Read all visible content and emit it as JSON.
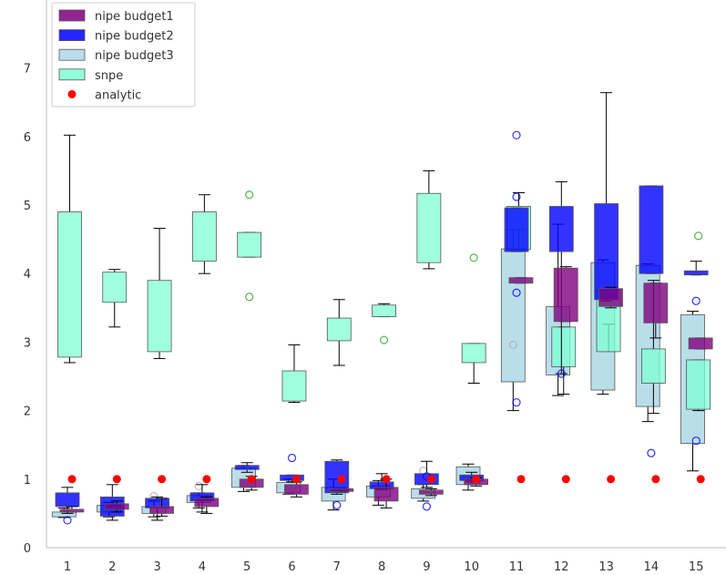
{
  "chart_data": {
    "type": "boxplot",
    "title": "",
    "xlabel": "",
    "ylabel": "",
    "ylim": [
      0,
      8
    ],
    "grid": false,
    "legend_position": "top-left",
    "categories": [
      "1",
      "2",
      "3",
      "4",
      "5",
      "6",
      "7",
      "8",
      "9",
      "10",
      "11",
      "12",
      "13",
      "14",
      "15"
    ],
    "yticks": [
      "0",
      "1",
      "2",
      "3",
      "4",
      "5",
      "6",
      "7"
    ],
    "legend": [
      {
        "label": "nipe budget1",
        "color": "#800080",
        "marker": "box"
      },
      {
        "label": "nipe budget2",
        "color": "#0000ff",
        "marker": "box"
      },
      {
        "label": "nipe budget3",
        "color": "#add8e6",
        "marker": "box"
      },
      {
        "label": "snpe",
        "color": "#7fffd4",
        "marker": "box"
      },
      {
        "label": "analytic",
        "color": "#ff0000",
        "marker": "dot"
      }
    ],
    "series": [
      {
        "name": "nipe budget3",
        "color": "#add8e6",
        "flier_color": "#aaaaaa",
        "offset": -0.15,
        "boxes": [
          {
            "x": 1,
            "wlo": 0.44,
            "q1": 0.45,
            "q3": 0.52,
            "whi": 0.58,
            "fliers": []
          },
          {
            "x": 2,
            "wlo": 0.45,
            "q1": 0.52,
            "q3": 0.62,
            "whi": 0.66,
            "fliers": []
          },
          {
            "x": 3,
            "wlo": 0.45,
            "q1": 0.5,
            "q3": 0.6,
            "whi": 0.68,
            "fliers": [
              0.75
            ]
          },
          {
            "x": 4,
            "wlo": 0.58,
            "q1": 0.66,
            "q3": 0.76,
            "whi": 0.8,
            "fliers": [
              0.9
            ]
          },
          {
            "x": 5,
            "wlo": 0.82,
            "q1": 0.88,
            "q3": 1.16,
            "whi": 1.2,
            "fliers": []
          },
          {
            "x": 6,
            "wlo": 0.78,
            "q1": 0.8,
            "q3": 0.95,
            "whi": 1.0,
            "fliers": []
          },
          {
            "x": 7,
            "wlo": 0.55,
            "q1": 0.68,
            "q3": 0.88,
            "whi": 1.0,
            "fliers": []
          },
          {
            "x": 8,
            "wlo": 0.62,
            "q1": 0.74,
            "q3": 0.9,
            "whi": 0.98,
            "fliers": []
          },
          {
            "x": 9,
            "wlo": 0.68,
            "q1": 0.72,
            "q3": 0.86,
            "whi": 0.92,
            "fliers": [
              1.12
            ]
          },
          {
            "x": 10,
            "wlo": 0.84,
            "q1": 0.92,
            "q3": 1.18,
            "whi": 1.22,
            "fliers": []
          },
          {
            "x": 11,
            "wlo": 2.0,
            "q1": 2.42,
            "q3": 4.36,
            "whi": 4.64,
            "fliers": [
              2.96
            ]
          },
          {
            "x": 12,
            "wlo": 2.22,
            "q1": 2.52,
            "q3": 3.52,
            "whi": 4.72,
            "fliers": []
          },
          {
            "x": 13,
            "wlo": 2.24,
            "q1": 2.3,
            "q3": 4.16,
            "whi": 4.2,
            "fliers": []
          },
          {
            "x": 14,
            "wlo": 1.84,
            "q1": 2.06,
            "q3": 4.12,
            "whi": 4.14,
            "fliers": []
          },
          {
            "x": 15,
            "wlo": 1.12,
            "q1": 1.52,
            "q3": 3.4,
            "whi": 3.45,
            "fliers": []
          }
        ]
      },
      {
        "name": "snpe",
        "color": "#7fffd4",
        "flier_color": "#2ca02c",
        "offset": 0.1,
        "boxes": [
          {
            "x": 1,
            "wlo": 2.7,
            "q1": 2.78,
            "q3": 4.9,
            "whi": 6.02,
            "fliers": []
          },
          {
            "x": 2,
            "wlo": 3.22,
            "q1": 3.58,
            "q3": 4.02,
            "whi": 4.06,
            "fliers": []
          },
          {
            "x": 3,
            "wlo": 2.76,
            "q1": 2.86,
            "q3": 3.9,
            "whi": 4.66,
            "fliers": []
          },
          {
            "x": 4,
            "wlo": 4.0,
            "q1": 4.18,
            "q3": 4.9,
            "whi": 5.15,
            "fliers": []
          },
          {
            "x": 5,
            "wlo": 4.24,
            "q1": 4.24,
            "q3": 4.6,
            "whi": 4.6,
            "fliers": [
              5.15,
              3.66
            ]
          },
          {
            "x": 6,
            "wlo": 2.12,
            "q1": 2.14,
            "q3": 2.58,
            "whi": 2.96,
            "fliers": []
          },
          {
            "x": 7,
            "wlo": 2.66,
            "q1": 3.02,
            "q3": 3.35,
            "whi": 3.62,
            "fliers": []
          },
          {
            "x": 8,
            "wlo": 3.37,
            "q1": 3.37,
            "q3": 3.54,
            "whi": 3.56,
            "fliers": [
              3.03
            ]
          },
          {
            "x": 9,
            "wlo": 4.07,
            "q1": 4.16,
            "q3": 5.17,
            "whi": 5.5,
            "fliers": []
          },
          {
            "x": 10,
            "wlo": 2.4,
            "q1": 2.7,
            "q3": 2.98,
            "whi": 2.98,
            "fliers": [
              4.23
            ]
          },
          {
            "x": 11,
            "wlo": 4.64,
            "q1": 4.35,
            "q3": 4.98,
            "whi": 5.18,
            "fliers": []
          },
          {
            "x": 12,
            "wlo": 2.24,
            "q1": 2.64,
            "q3": 3.22,
            "whi": 3.22,
            "fliers": []
          },
          {
            "x": 13,
            "wlo": 3.26,
            "q1": 2.86,
            "q3": 3.76,
            "whi": 3.76,
            "fliers": []
          },
          {
            "x": 14,
            "wlo": 1.96,
            "q1": 2.4,
            "q3": 2.9,
            "whi": 3.9,
            "fliers": []
          },
          {
            "x": 15,
            "wlo": 2.0,
            "q1": 2.02,
            "q3": 2.74,
            "whi": 2.74,
            "fliers": [
              4.55
            ]
          }
        ]
      },
      {
        "name": "nipe budget2",
        "color": "#0000ff",
        "flier_color": "#0000ff",
        "offset": 0.0,
        "boxes": [
          {
            "x": 1,
            "wlo": 0.5,
            "q1": 0.6,
            "q3": 0.8,
            "whi": 0.88,
            "fliers": [
              0.4
            ]
          },
          {
            "x": 2,
            "wlo": 0.4,
            "q1": 0.46,
            "q3": 0.74,
            "whi": 0.92,
            "fliers": []
          },
          {
            "x": 3,
            "wlo": 0.4,
            "q1": 0.58,
            "q3": 0.72,
            "whi": 0.74,
            "fliers": []
          },
          {
            "x": 4,
            "wlo": 0.52,
            "q1": 0.68,
            "q3": 0.8,
            "whi": 0.92,
            "fliers": []
          },
          {
            "x": 5,
            "wlo": 1.1,
            "q1": 1.14,
            "q3": 1.2,
            "whi": 1.24,
            "fliers": []
          },
          {
            "x": 6,
            "wlo": 0.96,
            "q1": 0.98,
            "q3": 1.06,
            "whi": 1.06,
            "fliers": [
              1.31
            ]
          },
          {
            "x": 7,
            "wlo": 0.78,
            "q1": 0.8,
            "q3": 1.26,
            "whi": 1.28,
            "fliers": [
              0.62
            ]
          },
          {
            "x": 8,
            "wlo": 0.85,
            "q1": 0.86,
            "q3": 0.96,
            "whi": 1.08,
            "fliers": []
          },
          {
            "x": 9,
            "wlo": 0.88,
            "q1": 0.92,
            "q3": 1.08,
            "whi": 1.26,
            "fliers": [
              0.6,
              1.04
            ]
          },
          {
            "x": 10,
            "wlo": 0.96,
            "q1": 0.98,
            "q3": 1.06,
            "whi": 1.1,
            "fliers": []
          },
          {
            "x": 11,
            "wlo": 4.32,
            "q1": 4.32,
            "q3": 4.96,
            "whi": 4.96,
            "fliers": [
              6.02,
              5.12,
              3.72,
              2.12
            ]
          },
          {
            "x": 12,
            "wlo": 2.54,
            "q1": 4.32,
            "q3": 4.98,
            "whi": 5.34,
            "fliers": [
              2.54
            ]
          },
          {
            "x": 13,
            "wlo": 3.6,
            "q1": 3.62,
            "q3": 5.02,
            "whi": 6.64,
            "fliers": []
          },
          {
            "x": 14,
            "wlo": 4.0,
            "q1": 4.0,
            "q3": 5.28,
            "whi": 5.28,
            "fliers": [
              1.38
            ]
          },
          {
            "x": 15,
            "wlo": 3.98,
            "q1": 3.98,
            "q3": 4.04,
            "whi": 4.18,
            "fliers": [
              3.6,
              1.56
            ]
          }
        ]
      },
      {
        "name": "nipe budget1",
        "color": "#800080",
        "flier_color": "#800080",
        "offset": 0.2,
        "boxes": [
          {
            "x": 1,
            "wlo": 0.52,
            "q1": 0.52,
            "q3": 0.56,
            "whi": 0.6,
            "fliers": []
          },
          {
            "x": 2,
            "wlo": 0.52,
            "q1": 0.56,
            "q3": 0.64,
            "whi": 0.68,
            "fliers": []
          },
          {
            "x": 3,
            "wlo": 0.46,
            "q1": 0.5,
            "q3": 0.6,
            "whi": 0.72,
            "fliers": []
          },
          {
            "x": 4,
            "wlo": 0.5,
            "q1": 0.6,
            "q3": 0.72,
            "whi": 0.74,
            "fliers": []
          },
          {
            "x": 5,
            "wlo": 0.84,
            "q1": 0.88,
            "q3": 1.0,
            "whi": 1.04,
            "fliers": []
          },
          {
            "x": 6,
            "wlo": 0.74,
            "q1": 0.78,
            "q3": 0.92,
            "whi": 0.96,
            "fliers": []
          },
          {
            "x": 7,
            "wlo": 0.82,
            "q1": 0.82,
            "q3": 0.86,
            "whi": 0.86,
            "fliers": []
          },
          {
            "x": 8,
            "wlo": 0.58,
            "q1": 0.68,
            "q3": 0.88,
            "whi": 1.0,
            "fliers": []
          },
          {
            "x": 9,
            "wlo": 0.76,
            "q1": 0.78,
            "q3": 0.84,
            "whi": 0.86,
            "fliers": []
          },
          {
            "x": 10,
            "wlo": 0.9,
            "q1": 0.92,
            "q3": 1.0,
            "whi": 1.02,
            "fliers": []
          },
          {
            "x": 11,
            "wlo": 3.86,
            "q1": 3.86,
            "q3": 3.94,
            "whi": 3.94,
            "fliers": []
          },
          {
            "x": 12,
            "wlo": 3.3,
            "q1": 3.3,
            "q3": 4.08,
            "whi": 4.1,
            "fliers": []
          },
          {
            "x": 13,
            "wlo": 3.5,
            "q1": 3.52,
            "q3": 3.78,
            "whi": 3.8,
            "fliers": []
          },
          {
            "x": 14,
            "wlo": 3.06,
            "q1": 3.28,
            "q3": 3.86,
            "whi": 3.86,
            "fliers": []
          },
          {
            "x": 15,
            "wlo": 2.9,
            "q1": 2.9,
            "q3": 3.06,
            "whi": 3.06,
            "fliers": []
          }
        ]
      }
    ],
    "analytic": {
      "name": "analytic",
      "color": "#ff0000",
      "points": [
        {
          "x": 1,
          "y": 1.0
        },
        {
          "x": 2,
          "y": 1.0
        },
        {
          "x": 3,
          "y": 1.0
        },
        {
          "x": 4,
          "y": 1.0
        },
        {
          "x": 5,
          "y": 1.0
        },
        {
          "x": 6,
          "y": 1.0
        },
        {
          "x": 7,
          "y": 1.0
        },
        {
          "x": 8,
          "y": 1.0
        },
        {
          "x": 9,
          "y": 1.0
        },
        {
          "x": 10,
          "y": 1.0
        },
        {
          "x": 11,
          "y": 1.0
        },
        {
          "x": 12,
          "y": 1.0
        },
        {
          "x": 13,
          "y": 1.0
        },
        {
          "x": 14,
          "y": 1.0
        },
        {
          "x": 15,
          "y": 1.0
        }
      ]
    }
  }
}
